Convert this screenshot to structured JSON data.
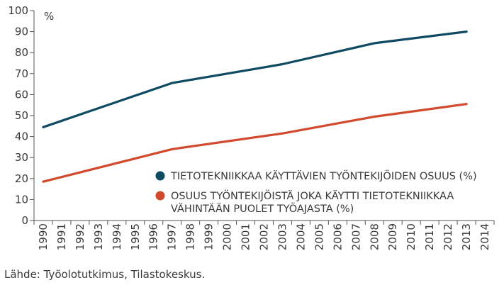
{
  "chart_data": {
    "type": "line",
    "x": [
      1990,
      1991,
      1992,
      1993,
      1994,
      1995,
      1996,
      1997,
      1998,
      1999,
      2000,
      2001,
      2002,
      2003,
      2004,
      2005,
      2006,
      2007,
      2008,
      2009,
      2010,
      2011,
      2012,
      2013,
      2014
    ],
    "x_tick_labels": [
      "1990",
      "1991",
      "1992",
      "1993",
      "1994",
      "1995",
      "1996",
      "1997",
      "1998",
      "1999",
      "2000",
      "2001",
      "2002",
      "2003",
      "2004",
      "2005",
      "2006",
      "2007",
      "2008",
      "2009",
      "2010",
      "2011",
      "2012",
      "2013",
      "2014"
    ],
    "y_ticks": [
      0,
      10,
      20,
      30,
      40,
      50,
      60,
      70,
      80,
      90,
      100
    ],
    "ylim": [
      0,
      100
    ],
    "xlim": [
      1990,
      2014
    ],
    "ylabel": "%",
    "grid": false,
    "series": [
      {
        "name_lines": [
          "TIETOTEKNIIKKAA KÄYTTÄVIEN TYÖNTEKIJÖIDEN OSUUS (%)"
        ],
        "color": "#0f4a63",
        "points": [
          [
            1990,
            44.5
          ],
          [
            1997,
            65.5
          ],
          [
            2003,
            74.5
          ],
          [
            2008,
            84.5
          ],
          [
            2013,
            90
          ]
        ]
      },
      {
        "name_lines": [
          "OSUUS TYÖNTEKIJÖISTÄ JOKA KÄYTTI TIETOTEKNIIKKAA",
          "VÄHINTÄÄN PUOLET TYÖAJASTA (%)"
        ],
        "color": "#d24a2e",
        "points": [
          [
            1990,
            18.5
          ],
          [
            1997,
            34
          ],
          [
            2003,
            41.5
          ],
          [
            2008,
            49.5
          ],
          [
            2013,
            55.5
          ]
        ]
      }
    ],
    "legend_position": "lower-right",
    "axis_color": "#555555"
  },
  "source_text": "Lähde: Työolotutkimus, Tilastokeskus."
}
